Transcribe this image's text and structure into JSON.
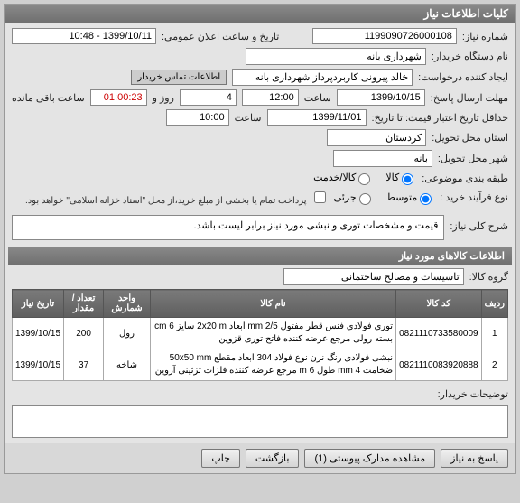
{
  "titlebar": "کلیات اطلاعات نیاز",
  "request_no_label": "شماره نیاز:",
  "request_no": "1199090726000108",
  "announce_label": "تاریخ و ساعت اعلان عمومی:",
  "announce_value": "1399/10/11 - 10:48",
  "buyer_org_label": "نام دستگاه خریدار:",
  "buyer_org": "شهرداری بانه",
  "creator_label": "ایجاد کننده درخواست:",
  "creator": "خالد پیرونی کاربردپرداز شهرداری بانه",
  "contact_btn": "اطلاعات تماس خریدار",
  "deadline_label": "مهلت ارسال پاسخ:",
  "deadline_date": "1399/10/15",
  "time_label": "ساعت",
  "deadline_time": "12:00",
  "days": "4",
  "days_label": "روز و",
  "countdown": "01:00:23",
  "remaining_label": "ساعت باقی مانده",
  "quote_valid_label": "حداقل تاریخ اعتبار قیمت: تا تاریخ:",
  "quote_valid_date": "1399/11/01",
  "quote_valid_time": "10:00",
  "province_label": "استان محل تحویل:",
  "province": "کردستان",
  "city_label": "شهر محل تحویل:",
  "city": "بانه",
  "package_label": "طبقه بندی موضوعی:",
  "package_opts": {
    "goods": "کالا",
    "service": "کالا/خدمت"
  },
  "package_selected": "goods",
  "purchase_type_label": "نوع فرآیند خرید :",
  "purchase_opts": {
    "medium": "متوسط",
    "small": "جزئی"
  },
  "purchase_selected": "medium",
  "payment_note": "پرداخت تمام یا بخشی از مبلغ خرید،از محل \"اسناد خزانه اسلامی\" خواهد بود.",
  "desc_label": "شرح کلی نیاز:",
  "desc": "قیمت و مشخصات توری و نبشی مورد نیاز برابر لیست باشد.",
  "items_section": "اطلاعات کالاهای مورد نیاز",
  "group_label": "گروه کالا:",
  "group": "تاسیسات و مصالح ساختمانی",
  "columns": {
    "row": "ردیف",
    "code": "کد کالا",
    "name": "نام کالا",
    "unit": "واحد شمارش",
    "qty": "تعداد / مقدار",
    "date": "تاریخ نیاز"
  },
  "rows": [
    {
      "idx": "1",
      "code": "0821110733580009",
      "name": "توری فولادی فنس قطر مفتول mm 2/5 ابعاد 2x20 m سایز 6 cm بسته رولی مرجع عرضه کننده فاتح توری قزوین",
      "unit": "رول",
      "qty": "200",
      "date": "1399/10/15"
    },
    {
      "idx": "2",
      "code": "0821110083920888",
      "name": "نبشی فولادی رنگ نرن نوع فولاد 304 ابعاد مقطع 50x50 mm ضخامت mm 4 طول m 6 مرجع عرضه کننده فلزات تزئینی آروین",
      "unit": "شاخه",
      "qty": "37",
      "date": "1399/10/15"
    }
  ],
  "buyer_desc_label": "توضیحات خریدار:",
  "footer": {
    "reply": "پاسخ به نیاز",
    "attachments": "مشاهده مدارک پیوستی (1)",
    "back": "بازگشت",
    "print": "چاپ"
  },
  "colors": {
    "header_bg": "#777777",
    "panel_bg": "#e4e4e4",
    "timer_color": "#cc0000"
  }
}
